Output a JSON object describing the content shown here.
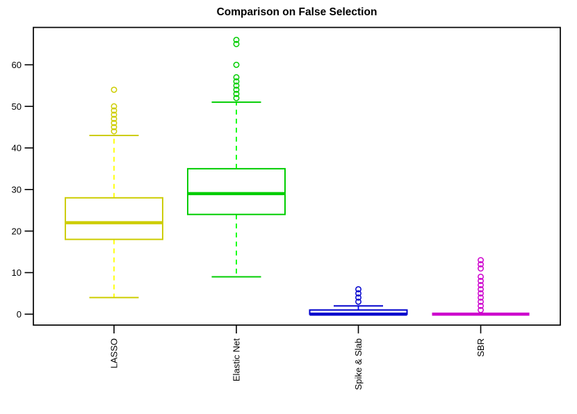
{
  "title": "Comparison on False Selection",
  "chart_data": {
    "type": "boxplot",
    "title": "Comparison on False Selection",
    "categories": [
      "LASSO",
      "Elastic Net",
      "Spike & Slab",
      "SBR"
    ],
    "xlabel": "",
    "ylabel": "",
    "yticks": [
      0,
      10,
      20,
      30,
      40,
      50,
      60
    ],
    "ylim": [
      -2.6,
      68.6
    ],
    "grid": false,
    "legend": "none",
    "series": [
      {
        "name": "LASSO",
        "lower_whisker": 4,
        "q1": 18,
        "median": 22,
        "q3": 28,
        "upper_whisker": 43,
        "outliers": [
          44,
          45,
          46,
          47,
          48,
          49,
          50,
          54
        ],
        "color": "#CDCD00",
        "whisker_color": "#FFFF00"
      },
      {
        "name": "Elastic Net",
        "lower_whisker": 9,
        "q1": 24,
        "median": 29,
        "q3": 35,
        "upper_whisker": 51,
        "outliers": [
          52,
          53,
          54,
          55,
          56,
          57,
          60,
          65,
          66
        ],
        "color": "#00CD00",
        "whisker_color": "#00FF00"
      },
      {
        "name": "Spike & Slab",
        "lower_whisker": 0,
        "q1": 0,
        "median": 0,
        "q3": 1,
        "upper_whisker": 2,
        "outliers": [
          3,
          4,
          5,
          6
        ],
        "color": "#0000CD",
        "whisker_color": "#0000FF"
      },
      {
        "name": "SBR",
        "lower_whisker": 0,
        "q1": 0,
        "median": 0,
        "q3": 0,
        "upper_whisker": 0,
        "outliers": [
          1,
          2,
          3,
          4,
          5,
          6,
          7,
          8,
          9,
          11,
          12,
          13
        ],
        "color": "#CD00CD",
        "whisker_color": "#FF00FF"
      }
    ],
    "axis_color": "#000000",
    "background_color": "#FFFFFF"
  }
}
